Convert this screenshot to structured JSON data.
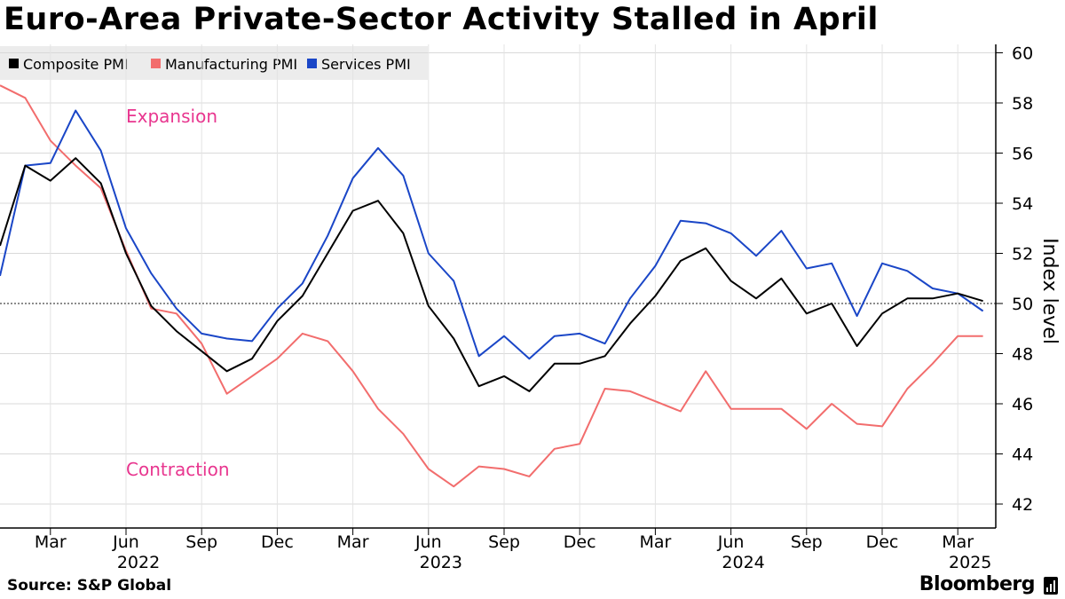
{
  "title": "Euro-Area Private-Sector Activity Stalled in April",
  "source": "Source: S&P Global",
  "brand": "Bloomberg",
  "chart_data": {
    "type": "line",
    "title": "Euro-Area Private-Sector Activity Stalled in April",
    "ylabel": "Index level",
    "xlabel": "",
    "ylim": [
      41,
      60.5
    ],
    "y_ticks": [
      42,
      44,
      46,
      48,
      50,
      52,
      54,
      56,
      58,
      60
    ],
    "reference_line": 50,
    "grid": true,
    "legend_position": "top-left",
    "x": [
      "2022-01",
      "2022-02",
      "2022-03",
      "2022-04",
      "2022-05",
      "2022-06",
      "2022-07",
      "2022-08",
      "2022-09",
      "2022-10",
      "2022-11",
      "2022-12",
      "2023-01",
      "2023-02",
      "2023-03",
      "2023-04",
      "2023-05",
      "2023-06",
      "2023-07",
      "2023-08",
      "2023-09",
      "2023-10",
      "2023-11",
      "2023-12",
      "2024-01",
      "2024-02",
      "2024-03",
      "2024-04",
      "2024-05",
      "2024-06",
      "2024-07",
      "2024-08",
      "2024-09",
      "2024-10",
      "2024-11",
      "2024-12",
      "2025-01",
      "2025-02",
      "2025-03",
      "2025-04"
    ],
    "x_tick_labels": [
      {
        "month": "Mar",
        "year": "2022",
        "index": 2
      },
      {
        "month": "Jun",
        "year": "",
        "index": 5
      },
      {
        "month": "Sep",
        "year": "",
        "index": 8
      },
      {
        "month": "Dec",
        "year": "",
        "index": 11
      },
      {
        "month": "Mar",
        "year": "2023",
        "index": 14
      },
      {
        "month": "Jun",
        "year": "",
        "index": 17
      },
      {
        "month": "Sep",
        "year": "",
        "index": 20
      },
      {
        "month": "Dec",
        "year": "",
        "index": 23
      },
      {
        "month": "Mar",
        "year": "2024",
        "index": 26
      },
      {
        "month": "Jun",
        "year": "",
        "index": 29
      },
      {
        "month": "Sep",
        "year": "",
        "index": 32
      },
      {
        "month": "Dec",
        "year": "",
        "index": 35
      },
      {
        "month": "Mar",
        "year": "2025",
        "index": 38
      }
    ],
    "year_labels": [
      {
        "text": "2022",
        "index": 5
      },
      {
        "text": "2023",
        "index": 17
      },
      {
        "text": "2024",
        "index": 29
      },
      {
        "text": "2025",
        "index": 38
      }
    ],
    "series": [
      {
        "name": "Composite PMI",
        "color": "#000000",
        "values": [
          52.3,
          55.5,
          54.9,
          55.8,
          54.8,
          52.0,
          49.9,
          48.9,
          48.1,
          47.3,
          47.8,
          49.3,
          50.3,
          52.0,
          53.7,
          54.1,
          52.8,
          49.9,
          48.6,
          46.7,
          47.1,
          46.5,
          47.6,
          47.6,
          47.9,
          49.2,
          50.3,
          51.7,
          52.2,
          50.9,
          50.2,
          51.0,
          49.6,
          50.0,
          48.3,
          49.6,
          50.2,
          50.2,
          50.4,
          50.1
        ]
      },
      {
        "name": "Manufacturing PMI",
        "color": "#f26d6d",
        "values": [
          58.7,
          58.2,
          56.5,
          55.5,
          54.6,
          52.1,
          49.8,
          49.6,
          48.4,
          46.4,
          47.1,
          47.8,
          48.8,
          48.5,
          47.3,
          45.8,
          44.8,
          43.4,
          42.7,
          43.5,
          43.4,
          43.1,
          44.2,
          44.4,
          46.6,
          46.5,
          46.1,
          45.7,
          47.3,
          45.8,
          45.8,
          45.8,
          45.0,
          46.0,
          45.2,
          45.1,
          46.6,
          47.6,
          48.7,
          48.7
        ]
      },
      {
        "name": "Services PMI",
        "color": "#1a46c7",
        "values": [
          51.1,
          55.5,
          55.6,
          57.7,
          56.1,
          53.0,
          51.2,
          49.8,
          48.8,
          48.6,
          48.5,
          49.8,
          50.8,
          52.7,
          55.0,
          56.2,
          55.1,
          52.0,
          50.9,
          47.9,
          48.7,
          47.8,
          48.7,
          48.8,
          48.4,
          50.2,
          51.5,
          53.3,
          53.2,
          52.8,
          51.9,
          52.9,
          51.4,
          51.6,
          49.5,
          51.6,
          51.3,
          50.6,
          50.4,
          49.7
        ]
      }
    ],
    "annotations": [
      "Expansion",
      "Contraction"
    ]
  }
}
